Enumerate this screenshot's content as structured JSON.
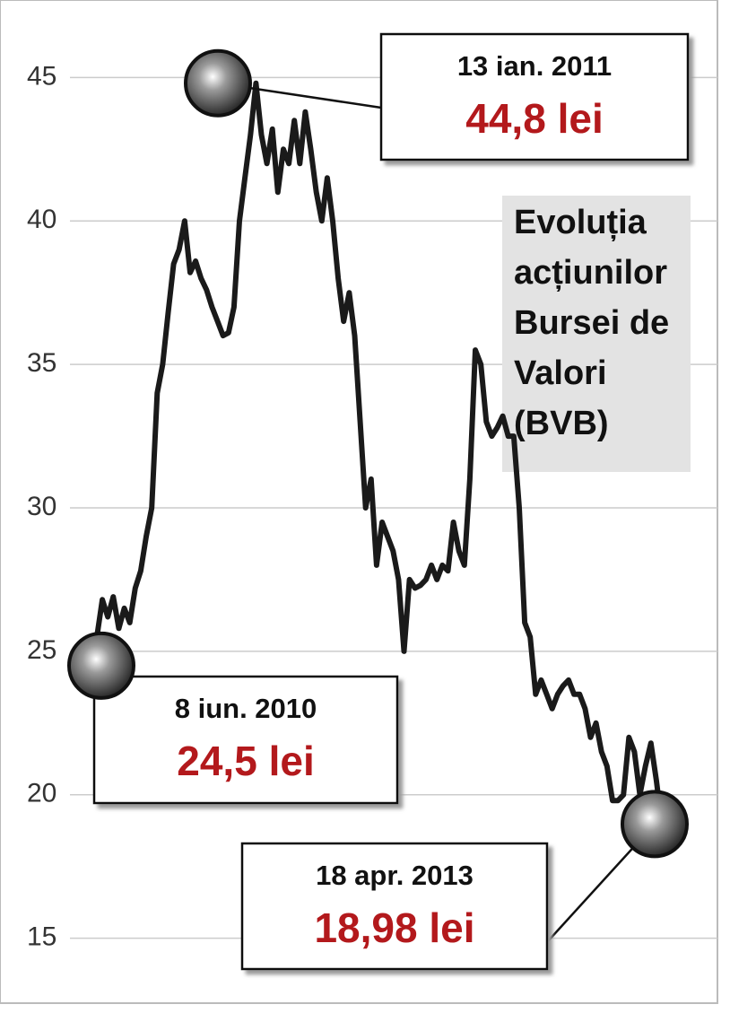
{
  "chart_data": {
    "type": "line",
    "title": [
      "Evoluția",
      "acțiunilor",
      "Bursei de",
      "Valori",
      "(BVB)"
    ],
    "color": "#1a1a1a",
    "values": [
      25.5,
      26.8,
      26.2,
      26.9,
      25.8,
      26.5,
      26.0,
      27.2,
      27.8,
      29.0,
      30.0,
      34.0,
      35.0,
      36.8,
      38.5,
      39.0,
      40.0,
      38.2,
      38.6,
      38.0,
      37.6,
      37.0,
      36.5,
      36.0,
      36.1,
      37.0,
      40.0,
      41.5,
      43.0,
      44.8,
      43.0,
      42.0,
      43.2,
      41.0,
      42.5,
      42.0,
      43.5,
      42.0,
      43.8,
      42.5,
      41.0,
      40.0,
      41.5,
      40.0,
      38.0,
      36.5,
      37.5,
      36.0,
      33.0,
      30.0,
      31.0,
      28.0,
      29.5,
      29.0,
      28.5,
      27.5,
      25.0,
      27.5,
      27.2,
      27.3,
      27.5,
      28.0,
      27.5,
      28.0,
      27.8,
      29.5,
      28.5,
      28.0,
      31.0,
      35.5,
      35.0,
      33.0,
      32.5,
      32.8,
      33.2,
      32.5,
      32.5,
      30.0,
      26.0,
      25.5,
      23.5,
      24.0,
      23.5,
      23.0,
      23.5,
      23.8,
      24.0,
      23.5,
      23.5,
      23.0,
      22.0,
      22.5,
      21.5,
      21.0,
      19.8,
      19.8,
      20.0,
      22.0,
      21.5,
      20.0,
      21.0,
      21.8,
      20.5,
      18.98
    ],
    "ylim": [
      12.8,
      47.7
    ],
    "yticks": [
      15,
      20,
      25,
      30,
      35,
      40,
      45
    ],
    "grid": true,
    "annotations": [
      {
        "date": "13 ian. 2011",
        "value": 44.8,
        "value_label": "44,8 lei"
      },
      {
        "date": "8 iun. 2010",
        "value": 24.5,
        "value_label": "24,5 lei"
      },
      {
        "date": "18 apr. 2013",
        "value": 18.98,
        "value_label": "18,98 lei"
      }
    ]
  }
}
